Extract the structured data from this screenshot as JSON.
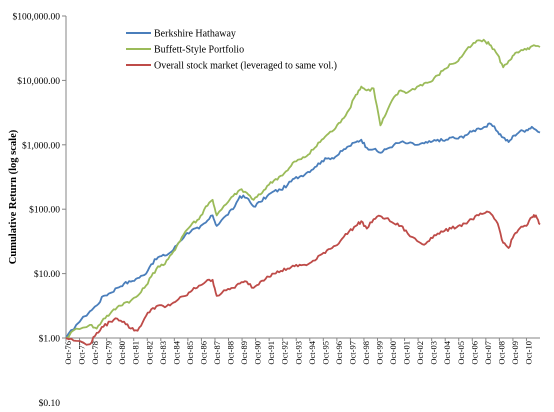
{
  "chart_data": {
    "type": "line",
    "title": "",
    "xlabel": "",
    "ylabel": "Cumulative Return  (log scale)",
    "y_scale": "log",
    "ylim": [
      0.1,
      100000
    ],
    "y_ticks": [
      {
        "value": 100000,
        "label": "$100,000.00"
      },
      {
        "value": 10000,
        "label": "$10,000.00"
      },
      {
        "value": 1000,
        "label": "$1,000.00"
      },
      {
        "value": 100,
        "label": "$100.00"
      },
      {
        "value": 10,
        "label": "$10.00"
      },
      {
        "value": 1,
        "label": "$1.00"
      },
      {
        "value": 0.1,
        "label": "$0.10"
      }
    ],
    "x_ticks": [
      "Oct-76",
      "Oct-77",
      "Oct-78",
      "Oct-79",
      "Oct-80",
      "Oct-81",
      "Oct-82",
      "Oct-83",
      "Oct-84",
      "Oct-85",
      "Oct-86",
      "Oct-87",
      "Oct-88",
      "Oct-89",
      "Oct-90",
      "Oct-91",
      "Oct-92",
      "Oct-93",
      "Oct-94",
      "Oct-95",
      "Oct-96",
      "Oct-97",
      "Oct-98",
      "Oct-99",
      "Oct-00",
      "Oct-01",
      "Oct-02",
      "Oct-03",
      "Oct-04",
      "Oct-05",
      "Oct-06",
      "Oct-07",
      "Oct-08",
      "Oct-09",
      "Oct-10"
    ],
    "x_range": [
      1976.75,
      2011.5
    ],
    "grid": false,
    "legend_position": "top-left",
    "series": [
      {
        "name": "Berkshire Hathaway",
        "color": "#4a7ebb",
        "points": [
          [
            1976.75,
            1.0
          ],
          [
            1977.5,
            1.6
          ],
          [
            1978.5,
            2.6
          ],
          [
            1979.0,
            3.2
          ],
          [
            1979.5,
            4.5
          ],
          [
            1980.0,
            5.0
          ],
          [
            1980.5,
            6.0
          ],
          [
            1981.0,
            7.0
          ],
          [
            1981.5,
            7.5
          ],
          [
            1982.0,
            8.5
          ],
          [
            1982.5,
            9.5
          ],
          [
            1983.0,
            14
          ],
          [
            1983.5,
            18
          ],
          [
            1984.0,
            19
          ],
          [
            1984.5,
            22
          ],
          [
            1985.0,
            30
          ],
          [
            1985.5,
            40
          ],
          [
            1986.0,
            48
          ],
          [
            1986.5,
            50
          ],
          [
            1987.0,
            62
          ],
          [
            1987.5,
            80
          ],
          [
            1987.8,
            55
          ],
          [
            1988.5,
            80
          ],
          [
            1989.0,
            100
          ],
          [
            1989.5,
            160
          ],
          [
            1990.0,
            150
          ],
          [
            1990.5,
            110
          ],
          [
            1991.0,
            130
          ],
          [
            1991.5,
            160
          ],
          [
            1992.0,
            190
          ],
          [
            1992.5,
            200
          ],
          [
            1993.0,
            240
          ],
          [
            1993.5,
            300
          ],
          [
            1994.0,
            330
          ],
          [
            1994.5,
            380
          ],
          [
            1995.0,
            450
          ],
          [
            1995.5,
            560
          ],
          [
            1996.0,
            620
          ],
          [
            1996.5,
            650
          ],
          [
            1997.0,
            800
          ],
          [
            1997.5,
            950
          ],
          [
            1998.0,
            1100
          ],
          [
            1998.4,
            1200
          ],
          [
            1998.8,
            900
          ],
          [
            1999.3,
            850
          ],
          [
            1999.8,
            750
          ],
          [
            2000.2,
            850
          ],
          [
            2000.8,
            1000
          ],
          [
            2001.3,
            1100
          ],
          [
            2001.8,
            1050
          ],
          [
            2002.5,
            1000
          ],
          [
            2003.0,
            1050
          ],
          [
            2003.5,
            1100
          ],
          [
            2004.0,
            1200
          ],
          [
            2004.5,
            1150
          ],
          [
            2005.0,
            1300
          ],
          [
            2005.5,
            1250
          ],
          [
            2006.0,
            1400
          ],
          [
            2006.5,
            1600
          ],
          [
            2007.0,
            1800
          ],
          [
            2007.5,
            1900
          ],
          [
            2007.9,
            2100
          ],
          [
            2008.4,
            1600
          ],
          [
            2008.8,
            1300
          ],
          [
            2009.2,
            1100
          ],
          [
            2009.6,
            1400
          ],
          [
            2010.0,
            1600
          ],
          [
            2010.5,
            1700
          ],
          [
            2010.9,
            1900
          ],
          [
            2011.5,
            1550
          ]
        ]
      },
      {
        "name": "Buffett-Style Portfolio",
        "color": "#9bbb59",
        "points": [
          [
            1976.75,
            1.0
          ],
          [
            1977.5,
            1.4
          ],
          [
            1978.5,
            1.6
          ],
          [
            1979.0,
            1.4
          ],
          [
            1979.5,
            2.0
          ],
          [
            1980.0,
            2.4
          ],
          [
            1980.5,
            3.0
          ],
          [
            1981.0,
            3.5
          ],
          [
            1981.5,
            3.8
          ],
          [
            1982.0,
            4.5
          ],
          [
            1982.5,
            6.0
          ],
          [
            1983.0,
            9
          ],
          [
            1983.5,
            13
          ],
          [
            1984.0,
            14
          ],
          [
            1984.5,
            20
          ],
          [
            1985.0,
            30
          ],
          [
            1985.5,
            45
          ],
          [
            1986.0,
            60
          ],
          [
            1986.5,
            70
          ],
          [
            1987.0,
            110
          ],
          [
            1987.5,
            140
          ],
          [
            1987.8,
            80
          ],
          [
            1988.5,
            120
          ],
          [
            1989.0,
            160
          ],
          [
            1989.5,
            200
          ],
          [
            1990.0,
            180
          ],
          [
            1990.5,
            140
          ],
          [
            1991.0,
            170
          ],
          [
            1991.5,
            230
          ],
          [
            1992.0,
            280
          ],
          [
            1992.5,
            330
          ],
          [
            1993.0,
            400
          ],
          [
            1993.5,
            550
          ],
          [
            1994.0,
            600
          ],
          [
            1994.5,
            700
          ],
          [
            1995.0,
            900
          ],
          [
            1995.5,
            1200
          ],
          [
            1996.0,
            1500
          ],
          [
            1996.5,
            1800
          ],
          [
            1997.0,
            2500
          ],
          [
            1997.5,
            3500
          ],
          [
            1998.0,
            6000
          ],
          [
            1998.4,
            8000
          ],
          [
            1998.8,
            7000
          ],
          [
            1999.3,
            7500
          ],
          [
            1999.8,
            2000
          ],
          [
            2000.2,
            3000
          ],
          [
            2000.8,
            5500
          ],
          [
            2001.3,
            7000
          ],
          [
            2001.8,
            6500
          ],
          [
            2002.5,
            8000
          ],
          [
            2003.0,
            9000
          ],
          [
            2003.5,
            9500
          ],
          [
            2004.0,
            12000
          ],
          [
            2004.5,
            15000
          ],
          [
            2005.0,
            18000
          ],
          [
            2005.5,
            20000
          ],
          [
            2006.0,
            28000
          ],
          [
            2006.5,
            35000
          ],
          [
            2007.0,
            42000
          ],
          [
            2007.5,
            40000
          ],
          [
            2007.9,
            35000
          ],
          [
            2008.4,
            25000
          ],
          [
            2008.8,
            16000
          ],
          [
            2009.2,
            20000
          ],
          [
            2009.6,
            25000
          ],
          [
            2010.0,
            28000
          ],
          [
            2010.5,
            30000
          ],
          [
            2010.9,
            34000
          ],
          [
            2011.5,
            33000
          ]
        ]
      },
      {
        "name": "Overall stock market (leveraged to same vol.)",
        "color": "#be4b48",
        "points": [
          [
            1976.75,
            1.0
          ],
          [
            1977.5,
            0.9
          ],
          [
            1978.5,
            0.8
          ],
          [
            1979.0,
            1.2
          ],
          [
            1979.5,
            1.5
          ],
          [
            1980.0,
            1.8
          ],
          [
            1980.5,
            2.0
          ],
          [
            1981.0,
            1.8
          ],
          [
            1981.5,
            1.4
          ],
          [
            1982.0,
            1.3
          ],
          [
            1982.5,
            2.0
          ],
          [
            1983.0,
            2.8
          ],
          [
            1983.5,
            3.2
          ],
          [
            1984.0,
            3.0
          ],
          [
            1984.5,
            3.4
          ],
          [
            1985.0,
            4.0
          ],
          [
            1985.5,
            4.5
          ],
          [
            1986.0,
            5.5
          ],
          [
            1986.5,
            6.5
          ],
          [
            1987.0,
            7.5
          ],
          [
            1987.5,
            8.0
          ],
          [
            1987.8,
            4.5
          ],
          [
            1988.5,
            5.5
          ],
          [
            1989.0,
            6.0
          ],
          [
            1989.5,
            7.0
          ],
          [
            1990.0,
            7.5
          ],
          [
            1990.5,
            6.0
          ],
          [
            1991.0,
            7.5
          ],
          [
            1991.5,
            9.0
          ],
          [
            1992.0,
            10
          ],
          [
            1992.5,
            11
          ],
          [
            1993.0,
            12
          ],
          [
            1993.5,
            13
          ],
          [
            1994.0,
            13.5
          ],
          [
            1994.5,
            14
          ],
          [
            1995.0,
            16
          ],
          [
            1995.5,
            20
          ],
          [
            1996.0,
            24
          ],
          [
            1996.5,
            27
          ],
          [
            1997.0,
            35
          ],
          [
            1997.5,
            45
          ],
          [
            1998.0,
            55
          ],
          [
            1998.4,
            65
          ],
          [
            1998.8,
            50
          ],
          [
            1999.3,
            70
          ],
          [
            1999.8,
            78
          ],
          [
            2000.2,
            72
          ],
          [
            2000.8,
            60
          ],
          [
            2001.3,
            55
          ],
          [
            2001.8,
            42
          ],
          [
            2002.5,
            32
          ],
          [
            2003.0,
            28
          ],
          [
            2003.5,
            36
          ],
          [
            2004.0,
            42
          ],
          [
            2004.5,
            46
          ],
          [
            2005.0,
            50
          ],
          [
            2005.5,
            55
          ],
          [
            2006.0,
            60
          ],
          [
            2006.5,
            70
          ],
          [
            2007.0,
            80
          ],
          [
            2007.5,
            88
          ],
          [
            2007.9,
            85
          ],
          [
            2008.4,
            60
          ],
          [
            2008.8,
            30
          ],
          [
            2009.2,
            25
          ],
          [
            2009.6,
            40
          ],
          [
            2010.0,
            50
          ],
          [
            2010.5,
            55
          ],
          [
            2010.9,
            75
          ],
          [
            2011.2,
            80
          ],
          [
            2011.5,
            58
          ]
        ]
      }
    ]
  }
}
